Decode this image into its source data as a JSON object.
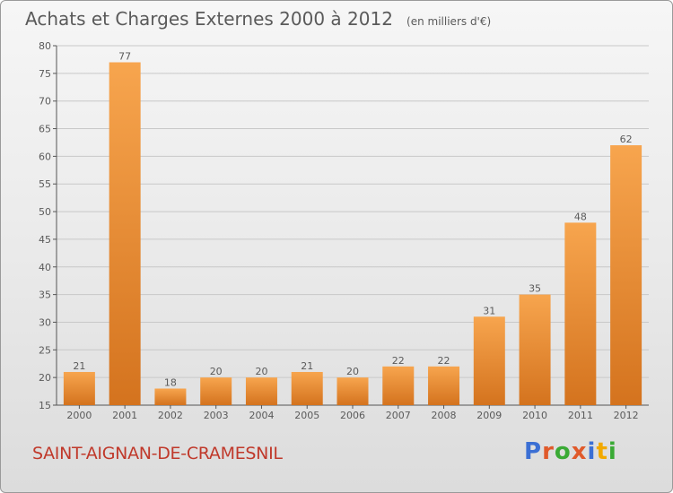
{
  "header": {
    "title": "Achats et Charges Externes 2000 à 2012",
    "unit": "(en milliers d'€)"
  },
  "footer": {
    "town": "SAINT-AIGNAN-DE-CRAMESNIL",
    "logo": "Proxiti",
    "logo_colors": [
      "#3b6fd4",
      "#e05a2b",
      "#3aaa35",
      "#e05a2b",
      "#3b6fd4",
      "#f2a900",
      "#3aaa35"
    ]
  },
  "colors": {
    "bar_light": "#f7a54e",
    "bar_dark": "#d4731e",
    "text": "#5a5a5a",
    "town": "#c0392b"
  },
  "chart_data": {
    "type": "bar",
    "categories": [
      "2000",
      "2001",
      "2002",
      "2003",
      "2004",
      "2005",
      "2006",
      "2007",
      "2008",
      "2009",
      "2010",
      "2011",
      "2012"
    ],
    "values": [
      21,
      77,
      18,
      20,
      20,
      21,
      20,
      22,
      22,
      31,
      35,
      48,
      62
    ],
    "data_labels": [
      "21",
      "77",
      "18",
      "20",
      "20",
      "21",
      "20",
      "22",
      "22",
      "31",
      "35",
      "48",
      "62"
    ],
    "title": "Achats et Charges Externes 2000 à 2012",
    "xlabel": "",
    "ylabel": "",
    "ylim": [
      15,
      80
    ],
    "yticks": [
      15,
      20,
      25,
      30,
      35,
      40,
      45,
      50,
      55,
      60,
      65,
      70,
      75,
      80
    ],
    "grid": true,
    "legend": "none"
  }
}
